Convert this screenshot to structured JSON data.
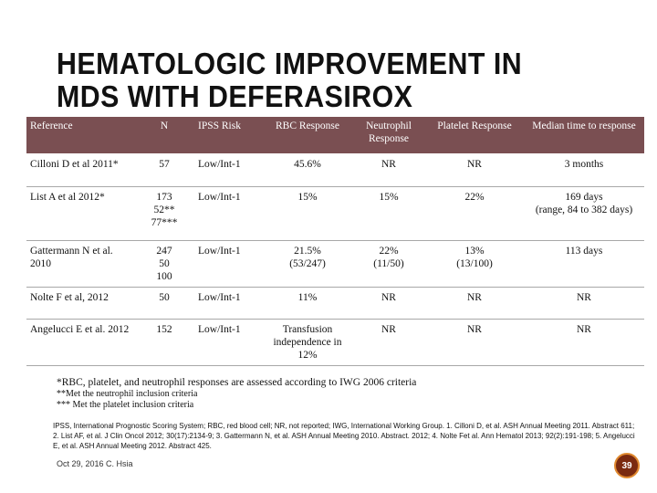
{
  "title": {
    "line1": "HEMATOLOGIC IMPROVEMENT IN",
    "line2": "MDS WITH DEFERASIROX"
  },
  "table": {
    "headers": [
      "Reference",
      "N",
      "IPSS Risk",
      "RBC Response",
      "Neutrophil Response",
      "Platelet Response",
      "Median time to response"
    ],
    "rows": [
      [
        "Cilloni D et al 2011*",
        "57",
        "Low/Int-1",
        "45.6%",
        "NR",
        "NR",
        "3 months"
      ],
      [
        "List A et al 2012*",
        "173\n52**\n77***",
        "Low/Int-1",
        "15%",
        "15%",
        "22%",
        "169 days\n(range, 84 to 382 days)"
      ],
      [
        "Gattermann N et al. 2010",
        "247\n50\n100",
        "Low/Int-1",
        "21.5%\n(53/247)",
        "22%\n(11/50)",
        "13%\n(13/100)",
        "113 days"
      ],
      [
        "Nolte F et al, 2012",
        "50",
        "Low/Int-1",
        "11%",
        "NR",
        "NR",
        "NR"
      ],
      [
        "Angelucci E et al. 2012",
        "152",
        "Low/Int-1",
        "Transfusion independence in 12%",
        "NR",
        "NR",
        "NR"
      ]
    ]
  },
  "footnotes": {
    "line1": "*RBC, platelet, and neutrophil responses are assessed according to IWG 2006 criteria",
    "line2": "**Met the neutrophil inclusion criteria",
    "line3": "*** Met the platelet inclusion criteria"
  },
  "references": "IPSS, International Prognostic Scoring System; RBC, red blood cell; NR, not reported; IWG, International Working Group. 1. Cilloni D, et al. ASH Annual Meeting 2011. Abstract 611; 2. List AF, et al. J Clin Oncol 2012; 30(17):2134-9; 3. Gattermann N, et al. ASH Annual Meeting 2010. Abstract. 2012; 4. Nolte Fet al. Ann Hematol 2013; 92(2):191-198; 5. Angelucci E, et al. ASH Annual Meeting 2012. Abstract 425.",
  "footer": {
    "date": "Oct 29, 2016 C. Hsia",
    "page_number": "39"
  },
  "colors": {
    "header_bg": "#7a4f52",
    "badge_bg": "#7a2a10",
    "badge_border": "#e08a30"
  }
}
